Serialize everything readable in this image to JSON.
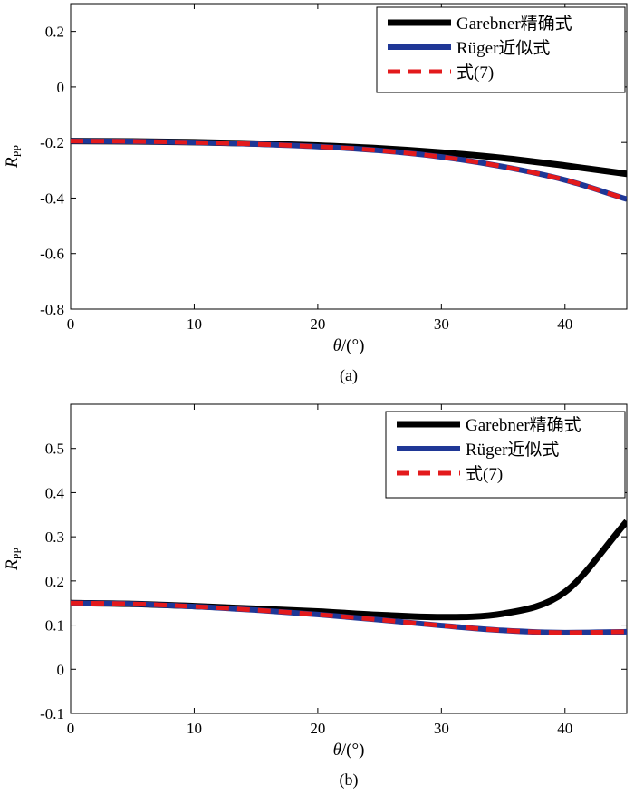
{
  "chart_data": [
    {
      "type": "line",
      "panel_label": "(a)",
      "xlabel_var": "θ",
      "xlabel_unit": "/(°)",
      "ylabel_main": "R",
      "ylabel_sub": "PP",
      "xlim": [
        0,
        45
      ],
      "ylim": [
        -0.8,
        0.3
      ],
      "xticks": [
        0,
        10,
        20,
        30,
        40
      ],
      "xtick_labels": [
        "0",
        "10",
        "20",
        "30",
        "40"
      ],
      "yticks": [
        -0.8,
        -0.6,
        -0.4,
        -0.2,
        0,
        0.2
      ],
      "ytick_labels": [
        "-0.8",
        "-0.6",
        "-0.4",
        "-0.2",
        "0",
        "0.2"
      ],
      "grid": false,
      "legend_position": "top-right",
      "x": [
        0,
        5,
        10,
        15,
        20,
        25,
        30,
        35,
        40,
        45
      ],
      "series": [
        {
          "name": "Garebner精确式",
          "color": "#000000",
          "style": "solid",
          "values": [
            -0.195,
            -0.196,
            -0.199,
            -0.204,
            -0.211,
            -0.221,
            -0.236,
            -0.256,
            -0.283,
            -0.313
          ]
        },
        {
          "name": "Rüger近似式",
          "color": "#1f3796",
          "style": "solid",
          "values": [
            -0.195,
            -0.196,
            -0.2,
            -0.206,
            -0.215,
            -0.229,
            -0.252,
            -0.287,
            -0.335,
            -0.404
          ]
        },
        {
          "name": "式(7)",
          "color": "#e31a1c",
          "style": "dashed",
          "values": [
            -0.195,
            -0.196,
            -0.2,
            -0.206,
            -0.215,
            -0.229,
            -0.252,
            -0.287,
            -0.335,
            -0.404
          ]
        }
      ]
    },
    {
      "type": "line",
      "panel_label": "(b)",
      "xlabel_var": "θ",
      "xlabel_unit": "/(°)",
      "ylabel_main": "R",
      "ylabel_sub": "PP",
      "xlim": [
        0,
        45
      ],
      "ylim": [
        -0.1,
        0.6
      ],
      "xticks": [
        0,
        10,
        20,
        30,
        40
      ],
      "xtick_labels": [
        "0",
        "10",
        "20",
        "30",
        "40"
      ],
      "yticks": [
        -0.1,
        0,
        0.1,
        0.2,
        0.3,
        0.4,
        0.5
      ],
      "ytick_labels": [
        "-0.1",
        "0",
        "0.1",
        "0.2",
        "0.3",
        "0.4",
        "0.5"
      ],
      "grid": false,
      "legend_position": "top-right",
      "x": [
        0,
        5,
        10,
        15,
        20,
        25,
        30,
        35,
        40,
        45
      ],
      "series": [
        {
          "name": "Garebner精确式",
          "color": "#000000",
          "style": "solid",
          "values": [
            0.15,
            0.148,
            0.143,
            0.137,
            0.131,
            0.123,
            0.118,
            0.126,
            0.175,
            0.335
          ]
        },
        {
          "name": "Rüger近似式",
          "color": "#1f3796",
          "style": "solid",
          "values": [
            0.15,
            0.148,
            0.142,
            0.134,
            0.124,
            0.112,
            0.099,
            0.088,
            0.083,
            0.085
          ]
        },
        {
          "name": "式(7)",
          "color": "#e31a1c",
          "style": "dashed",
          "values": [
            0.15,
            0.148,
            0.142,
            0.134,
            0.124,
            0.112,
            0.099,
            0.088,
            0.083,
            0.085
          ]
        }
      ]
    }
  ]
}
